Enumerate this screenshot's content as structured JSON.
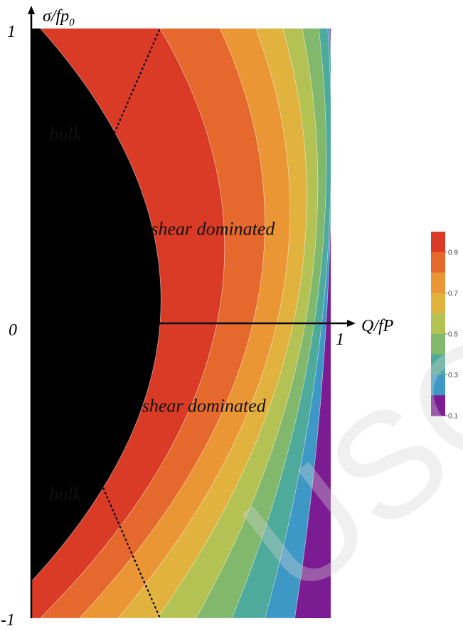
{
  "chart_data": {
    "type": "heatmap",
    "title": "",
    "xlabel": "Q/fP",
    "ylabel": "σ/fp₀",
    "ylabel_main": "σ/fp",
    "ylabel_sub": "0",
    "xlim": [
      0,
      1
    ],
    "ylim": [
      -1,
      1
    ],
    "x_tick_labels": [
      "0",
      "1"
    ],
    "y_tick_labels": [
      "1",
      "-1"
    ],
    "contour_levels": [
      0.1,
      0.2,
      0.3,
      0.4,
      0.5,
      0.6,
      0.7,
      0.8,
      0.9
    ],
    "boundary_crossings": {
      "description": "x position (Q/fP) where each contour level crosses the top (σ=1), middle (σ=0) and bottom (σ=-1) edges",
      "levels": [
        {
          "level": 0.9,
          "top": 0.03,
          "mid": 0.43,
          "bottom": -0.12
        },
        {
          "level": 0.8,
          "top": 0.43,
          "mid": 0.62,
          "bottom": 0.03
        },
        {
          "level": 0.7,
          "top": 0.63,
          "mid": 0.74,
          "bottom": 0.16
        },
        {
          "level": 0.6,
          "top": 0.75,
          "mid": 0.82,
          "bottom": 0.29
        },
        {
          "level": 0.5,
          "top": 0.84,
          "mid": 0.875,
          "bottom": 0.42
        },
        {
          "level": 0.4,
          "top": 0.905,
          "mid": 0.915,
          "bottom": 0.55
        },
        {
          "level": 0.3,
          "top": 0.96,
          "mid": 0.945,
          "bottom": 0.67
        },
        {
          "level": 0.2,
          "top": 0.99,
          "mid": 0.97,
          "bottom": 0.78
        },
        {
          "level": 0.1,
          "top": 0.997,
          "mid": 0.985,
          "bottom": 0.88
        }
      ]
    },
    "band_colors": [
      "#7b1c93",
      "#3e98c6",
      "#4eaa9a",
      "#82b86c",
      "#b4c253",
      "#e2b23f",
      "#ea9635",
      "#e5682c",
      "#da3b26"
    ],
    "dotted_lines": [
      {
        "name": "upper-divider",
        "from": [
          0,
          0
        ],
        "to": [
          0.43,
          1
        ]
      },
      {
        "name": "lower-divider",
        "from": [
          0,
          0
        ],
        "to": [
          0.43,
          -1
        ]
      }
    ],
    "annotations": [
      {
        "text": "bulk",
        "x": 0.06,
        "y": 0.62
      },
      {
        "text": "shear dominated",
        "x": 0.4,
        "y": 0.3
      },
      {
        "text": "shear dominated",
        "x": 0.37,
        "y": -0.3
      },
      {
        "text": "bulk",
        "x": 0.06,
        "y": -0.6
      }
    ],
    "colorbar": {
      "ticks": [
        "0.9",
        "0.7",
        "0.5",
        "0.3",
        "0.1"
      ],
      "colors_top_to_bottom": [
        "#da3b26",
        "#e5682c",
        "#ea9635",
        "#e2b23f",
        "#b4c253",
        "#82b86c",
        "#4eaa9a",
        "#3e98c6",
        "#7b1c93"
      ]
    },
    "grid": false
  },
  "watermark": {
    "text": "USCR",
    "color": "#d4d4d4"
  }
}
